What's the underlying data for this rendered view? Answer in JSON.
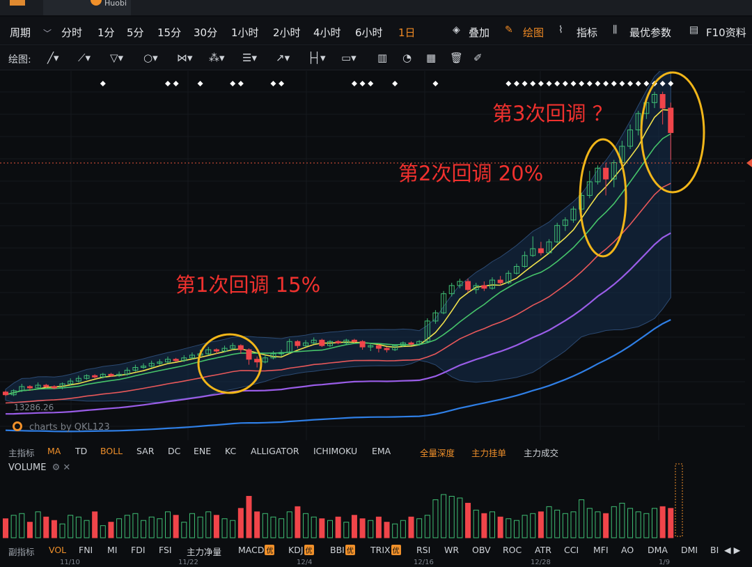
{
  "window": {
    "tab_title": "Huobi"
  },
  "toolbar": {
    "period_label": "周期",
    "periods": [
      "分时",
      "1分",
      "5分",
      "15分",
      "30分",
      "1小时",
      "2小时",
      "4小时",
      "6小时",
      "1日"
    ],
    "active_period": "1日",
    "actions": [
      "叠加",
      "绘图",
      "指标",
      "最优参数",
      "F10资料"
    ],
    "active_action": "绘图"
  },
  "draw_toolbar": {
    "label": "绘图:"
  },
  "annotations": [
    "第1次回调 15%",
    "第2次回调 20%",
    "第3次回调 ？"
  ],
  "watermark": "charts by QKL123",
  "price_low_label": "13286.26",
  "main_indicators": {
    "label": "主指标",
    "items": [
      "MA",
      "TD",
      "BOLL",
      "SAR",
      "DC",
      "ENE",
      "KC",
      "ALLIGATOR",
      "ICHIMOKU",
      "EMA",
      "全量深度",
      "主力挂单",
      "主力成交"
    ],
    "active": [
      "MA",
      "BOLL",
      "全量深度",
      "主力挂单"
    ]
  },
  "volume_panel": {
    "label": "VOLUME"
  },
  "sub_indicators": {
    "label": "副指标",
    "items": [
      "VOL",
      "FNI",
      "MI",
      "FDI",
      "FSI",
      "主力净量",
      "MACD",
      "KDJ",
      "BBI",
      "TRIX",
      "RSI",
      "WR",
      "OBV",
      "ROC",
      "ATR",
      "CCI",
      "MFI",
      "AO",
      "DMA",
      "DMI",
      "BI"
    ],
    "active": "VOL",
    "badged": [
      "MACD",
      "KDJ",
      "BBI",
      "TRIX"
    ],
    "badge_text": "优"
  },
  "date_axis": [
    "11/10",
    "11/22",
    "12/4",
    "12/16",
    "12/28",
    "1/9"
  ],
  "colors": {
    "up": "#3fbf74",
    "down": "#f0454a",
    "ma5": "#f1e24c",
    "ma10": "#46c46a",
    "ma20": "#e9585a",
    "ma30": "#9a5de8",
    "ma60": "#2f7fe6",
    "circle": "#f2b619",
    "annotation": "#f0312e",
    "accent": "#f0902a"
  },
  "chart_data": {
    "type": "candlestick",
    "title": "",
    "xlabel": "",
    "ylabel": "",
    "candles": [
      [
        100,
        98,
        101,
        97
      ],
      [
        98,
        101,
        102,
        97
      ],
      [
        101,
        104,
        106,
        100
      ],
      [
        104,
        103,
        105,
        101
      ],
      [
        103,
        105,
        107,
        102
      ],
      [
        105,
        104,
        106,
        103
      ],
      [
        104,
        103,
        105,
        102
      ],
      [
        103,
        106,
        107,
        102
      ],
      [
        106,
        108,
        110,
        105
      ],
      [
        108,
        110,
        112,
        107
      ],
      [
        110,
        112,
        113,
        109
      ],
      [
        112,
        111,
        113,
        110
      ],
      [
        111,
        113,
        114,
        110
      ],
      [
        113,
        112,
        114,
        111
      ],
      [
        112,
        113,
        115,
        111
      ],
      [
        113,
        116,
        118,
        112
      ],
      [
        116,
        118,
        120,
        115
      ],
      [
        118,
        119,
        121,
        117
      ],
      [
        119,
        121,
        123,
        118
      ],
      [
        121,
        122,
        124,
        120
      ],
      [
        122,
        124,
        126,
        121
      ],
      [
        124,
        123,
        125,
        122
      ],
      [
        123,
        125,
        127,
        122
      ],
      [
        125,
        127,
        129,
        124
      ],
      [
        127,
        128,
        131,
        126
      ],
      [
        128,
        131,
        133,
        127
      ],
      [
        131,
        130,
        132,
        128
      ],
      [
        130,
        132,
        134,
        129
      ],
      [
        132,
        134,
        136,
        131
      ],
      [
        134,
        131,
        135,
        128
      ],
      [
        131,
        124,
        132,
        120
      ],
      [
        124,
        122,
        126,
        118
      ],
      [
        122,
        125,
        127,
        121
      ],
      [
        125,
        128,
        130,
        124
      ],
      [
        128,
        129,
        131,
        126
      ],
      [
        129,
        137,
        139,
        128
      ],
      [
        137,
        134,
        138,
        132
      ],
      [
        134,
        136,
        138,
        133
      ],
      [
        136,
        138,
        140,
        135
      ],
      [
        138,
        134,
        139,
        133
      ],
      [
        134,
        137,
        138,
        133
      ],
      [
        137,
        136,
        138,
        135
      ],
      [
        136,
        138,
        139,
        135
      ],
      [
        138,
        137,
        139,
        136
      ],
      [
        137,
        133,
        138,
        131
      ],
      [
        133,
        134,
        135,
        130
      ],
      [
        134,
        132,
        135,
        129
      ],
      [
        132,
        131,
        133,
        129
      ],
      [
        131,
        134,
        135,
        130
      ],
      [
        134,
        136,
        137,
        133
      ],
      [
        136,
        135,
        137,
        134
      ],
      [
        135,
        137,
        138,
        134
      ],
      [
        137,
        152,
        154,
        136
      ],
      [
        152,
        158,
        160,
        150
      ],
      [
        158,
        172,
        174,
        157
      ],
      [
        172,
        178,
        180,
        170
      ],
      [
        178,
        181,
        183,
        176
      ],
      [
        181,
        175,
        183,
        173
      ],
      [
        175,
        178,
        180,
        172
      ],
      [
        178,
        176,
        181,
        174
      ],
      [
        176,
        182,
        184,
        175
      ],
      [
        182,
        180,
        185,
        178
      ],
      [
        180,
        187,
        189,
        179
      ],
      [
        187,
        192,
        194,
        186
      ],
      [
        192,
        200,
        203,
        191
      ],
      [
        200,
        205,
        214,
        199
      ],
      [
        205,
        202,
        210,
        200
      ],
      [
        202,
        210,
        212,
        201
      ],
      [
        210,
        222,
        224,
        209
      ],
      [
        222,
        226,
        228,
        218
      ],
      [
        226,
        234,
        236,
        224
      ],
      [
        234,
        244,
        246,
        232
      ],
      [
        244,
        254,
        262,
        242
      ],
      [
        254,
        264,
        266,
        252
      ],
      [
        264,
        256,
        268,
        244
      ],
      [
        256,
        268,
        270,
        250
      ],
      [
        268,
        280,
        284,
        266
      ],
      [
        280,
        292,
        296,
        278
      ],
      [
        292,
        304,
        306,
        288
      ],
      [
        304,
        312,
        316,
        300
      ],
      [
        312,
        318,
        320,
        308
      ],
      [
        318,
        308,
        320,
        296
      ],
      [
        308,
        290,
        312,
        270
      ]
    ],
    "ma_series": [
      {
        "name": "MA5",
        "period": 5
      },
      {
        "name": "MA10",
        "period": 10
      },
      {
        "name": "MA20",
        "period": 20
      },
      {
        "name": "MA30",
        "period": 30
      },
      {
        "name": "MA60",
        "period": 60
      }
    ],
    "volume": [
      22,
      26,
      28,
      18,
      30,
      24,
      20,
      16,
      26,
      24,
      20,
      30,
      14,
      18,
      22,
      26,
      28,
      20,
      24,
      22,
      30,
      26,
      18,
      28,
      24,
      30,
      26,
      22,
      20,
      34,
      48,
      30,
      28,
      24,
      22,
      30,
      36,
      28,
      24,
      22,
      20,
      24,
      18,
      26,
      22,
      20,
      24,
      18,
      16,
      20,
      24,
      22,
      26,
      44,
      50,
      48,
      46,
      40,
      32,
      28,
      30,
      24,
      22,
      20,
      26,
      28,
      30,
      36,
      32,
      28,
      30,
      44,
      34,
      30,
      28,
      36,
      40,
      34,
      30,
      28,
      34,
      36,
      34
    ],
    "ylim": [
      80,
      330
    ]
  }
}
